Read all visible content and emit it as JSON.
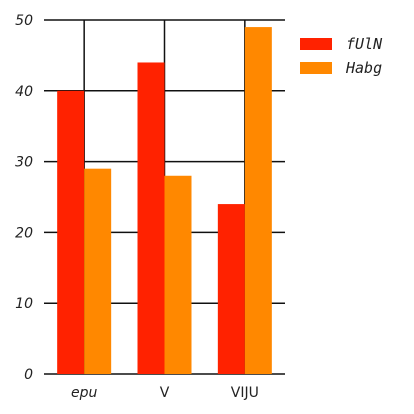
{
  "chart_data": {
    "type": "bar",
    "categories": [
      "epu",
      "V",
      "VIJU"
    ],
    "category_italic": [
      true,
      false,
      false
    ],
    "series": [
      {
        "name": "fUlN",
        "values": [
          40,
          44,
          24
        ],
        "color": "#ff2200"
      },
      {
        "name": "Habg",
        "values": [
          29,
          28,
          49
        ],
        "color": "#ff8800"
      }
    ],
    "ylim": [
      0,
      50
    ],
    "yticks": [
      0,
      10,
      20,
      30,
      40,
      50
    ],
    "title": "",
    "xlabel": "",
    "ylabel": "",
    "grid": "on",
    "legend_position": "top-right"
  }
}
